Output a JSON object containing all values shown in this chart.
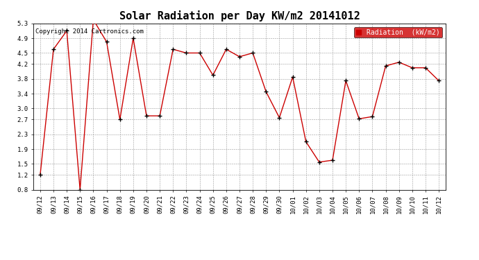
{
  "title": "Solar Radiation per Day KW/m2 20141012",
  "copyright_text": "Copyright 2014 Cartronics.com",
  "legend_label": "Radiation  (kW/m2)",
  "dates": [
    "09/12",
    "09/13",
    "09/14",
    "09/15",
    "09/16",
    "09/17",
    "09/18",
    "09/19",
    "09/20",
    "09/21",
    "09/22",
    "09/23",
    "09/24",
    "09/25",
    "09/26",
    "09/27",
    "09/28",
    "09/29",
    "09/30",
    "10/01",
    "10/02",
    "10/03",
    "10/04",
    "10/05",
    "10/06",
    "10/07",
    "10/08",
    "10/09",
    "10/10",
    "10/11",
    "10/12"
  ],
  "values": [
    1.2,
    4.6,
    5.1,
    0.8,
    5.4,
    4.8,
    2.7,
    4.9,
    2.8,
    2.8,
    4.6,
    4.5,
    4.5,
    3.9,
    4.6,
    4.4,
    4.5,
    3.45,
    2.75,
    3.85,
    2.1,
    1.55,
    1.6,
    3.75,
    2.72,
    2.78,
    4.15,
    4.25,
    4.1,
    4.1,
    3.75
  ],
  "line_color": "#cc0000",
  "marker_color": "#000000",
  "background_color": "#ffffff",
  "grid_color": "#999999",
  "legend_bg": "#cc0000",
  "legend_text_color": "#ffffff",
  "ylim": [
    0.8,
    5.3
  ],
  "yticks": [
    0.8,
    1.2,
    1.5,
    1.9,
    2.3,
    2.7,
    3.0,
    3.4,
    3.8,
    4.2,
    4.5,
    4.9,
    5.3
  ],
  "title_fontsize": 11,
  "copyright_fontsize": 6.5,
  "tick_fontsize": 6.5,
  "legend_fontsize": 7
}
